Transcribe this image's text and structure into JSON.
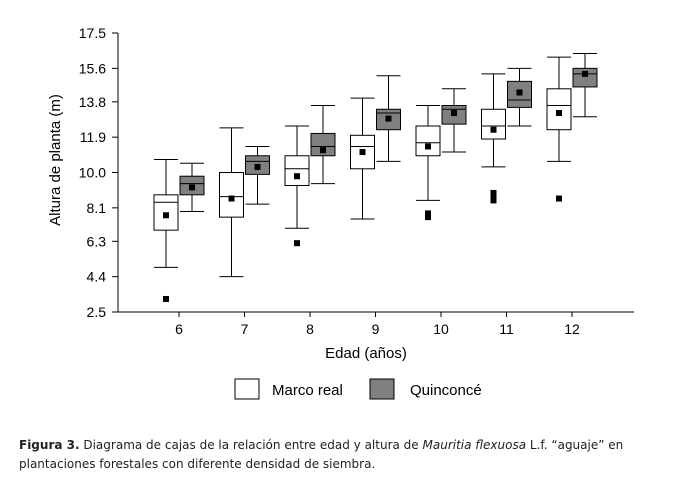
{
  "chart_data": {
    "type": "boxplot",
    "xlabel": "Edad (años)",
    "ylabel": "Altura de planta (m)",
    "ylim": [
      2.5,
      17.5
    ],
    "yticks": [
      "17.5",
      "15.6",
      "13.8",
      "11.9",
      "10.0",
      "8.1",
      "6.3",
      "4.4",
      "2.5"
    ],
    "categories": [
      "6",
      "7",
      "8",
      "9",
      "10",
      "11",
      "12"
    ],
    "grid": false,
    "legend_position": "bottom",
    "series": [
      {
        "name": "Marco real",
        "color": "#ffffff",
        "boxes": [
          {
            "whisker_low": 4.9,
            "q1": 6.9,
            "median": 8.4,
            "q3": 8.8,
            "whisker_high": 10.7,
            "mean": 7.7,
            "outliers": [
              3.2
            ]
          },
          {
            "whisker_low": 4.4,
            "q1": 7.6,
            "median": 8.7,
            "q3": 10.0,
            "whisker_high": 12.4,
            "mean": 8.6,
            "outliers": []
          },
          {
            "whisker_low": 7.0,
            "q1": 9.3,
            "median": 10.2,
            "q3": 10.9,
            "whisker_high": 12.5,
            "mean": 9.8,
            "outliers": [
              6.2
            ]
          },
          {
            "whisker_low": 7.5,
            "q1": 10.2,
            "median": 11.4,
            "q3": 12.0,
            "whisker_high": 14.0,
            "mean": 11.1,
            "outliers": []
          },
          {
            "whisker_low": 8.5,
            "q1": 10.9,
            "median": 11.6,
            "q3": 12.5,
            "whisker_high": 13.6,
            "mean": 11.4,
            "outliers": [
              7.6,
              7.8
            ]
          },
          {
            "whisker_low": 10.3,
            "q1": 11.8,
            "median": 12.5,
            "q3": 13.4,
            "whisker_high": 15.3,
            "mean": 12.3,
            "outliers": [
              8.5,
              8.7,
              8.9
            ]
          },
          {
            "whisker_low": 10.6,
            "q1": 12.3,
            "median": 13.6,
            "q3": 14.5,
            "whisker_high": 16.2,
            "mean": 13.2,
            "outliers": [
              8.6
            ]
          }
        ]
      },
      {
        "name": "Quinconcé",
        "color": "#808080",
        "boxes": [
          {
            "whisker_low": 7.9,
            "q1": 8.8,
            "median": 9.4,
            "q3": 9.8,
            "whisker_high": 10.5,
            "mean": 9.2,
            "outliers": []
          },
          {
            "whisker_low": 8.3,
            "q1": 9.9,
            "median": 10.6,
            "q3": 10.9,
            "whisker_high": 11.4,
            "mean": 10.3,
            "outliers": []
          },
          {
            "whisker_low": 9.4,
            "q1": 10.9,
            "median": 11.4,
            "q3": 12.1,
            "whisker_high": 13.6,
            "mean": 11.2,
            "outliers": []
          },
          {
            "whisker_low": 10.6,
            "q1": 12.3,
            "median": 13.2,
            "q3": 13.4,
            "whisker_high": 15.2,
            "mean": 12.9,
            "outliers": []
          },
          {
            "whisker_low": 11.1,
            "q1": 12.6,
            "median": 13.4,
            "q3": 13.6,
            "whisker_high": 14.5,
            "mean": 13.2,
            "outliers": []
          },
          {
            "whisker_low": 12.5,
            "q1": 13.5,
            "median": 13.9,
            "q3": 14.9,
            "whisker_high": 15.6,
            "mean": 14.3,
            "outliers": []
          },
          {
            "whisker_low": 13.0,
            "q1": 14.6,
            "median": 15.3,
            "q3": 15.6,
            "whisker_high": 16.4,
            "mean": 15.3,
            "outliers": []
          }
        ]
      }
    ]
  },
  "caption": {
    "label": "Figura 3.",
    "text_before": " Diagrama de cajas de la relación entre edad y altura de ",
    "species": "Mauritia flexuosa",
    "text_after": " L.f. “aguaje” en plantaciones forestales con diferente densidad de siembra."
  }
}
